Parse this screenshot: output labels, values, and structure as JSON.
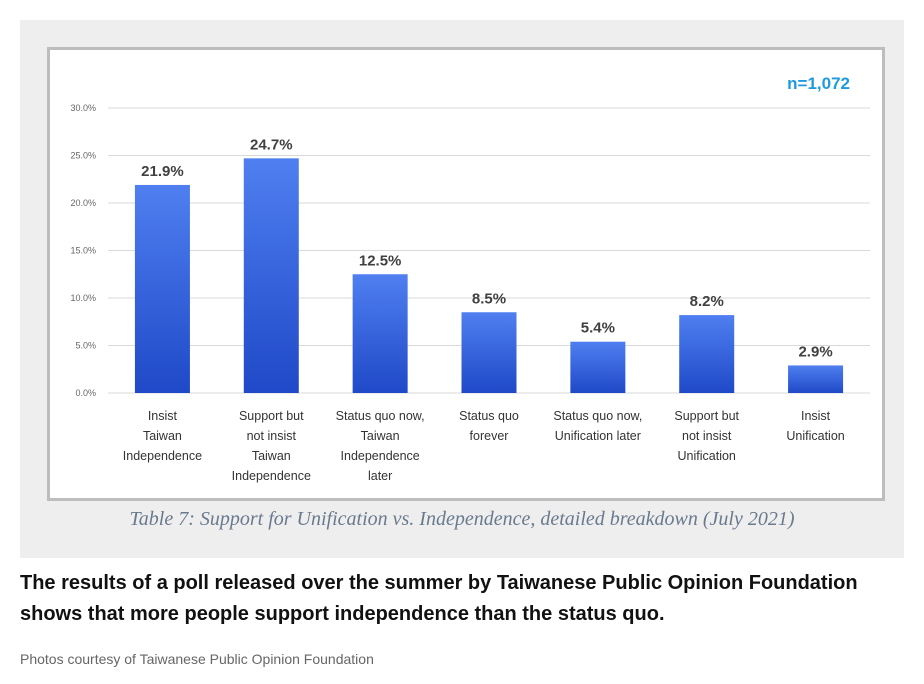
{
  "chart_data": {
    "type": "bar",
    "categories": [
      [
        "Insist",
        "Taiwan",
        "Independence"
      ],
      [
        "Support but",
        "not insist",
        "Taiwan",
        "Independence"
      ],
      [
        "Status quo now,",
        "Taiwan",
        "Independence",
        "later"
      ],
      [
        "Status quo",
        "forever"
      ],
      [
        "Status quo now,",
        "Unification later"
      ],
      [
        "Support but",
        "not insist",
        "Unification"
      ],
      [
        "Insist",
        "Unification"
      ]
    ],
    "values": [
      21.9,
      24.7,
      12.5,
      8.5,
      5.4,
      8.2,
      2.9
    ],
    "data_labels": [
      "21.9%",
      "24.7%",
      "12.5%",
      "8.5%",
      "5.4%",
      "8.2%",
      "2.9%"
    ],
    "yticks": [
      "0.0%",
      "5.0%",
      "10.0%",
      "15.0%",
      "20.0%",
      "25.0%",
      "30.0%"
    ],
    "ylim": [
      0,
      30
    ],
    "annotation": "n=1,072",
    "grid": true,
    "colors": {
      "bar_top": "#4f7ff0",
      "bar_bottom": "#1f49c8",
      "annotation": "#1e9be0",
      "grid": "#d9d9d9"
    }
  },
  "caption": "Table 7: Support for Unification vs. Independence, detailed breakdown (July 2021)",
  "headline": "The results of a poll released over the summer by Taiwanese Public Opinion Foundation shows that more people support independence than the status quo.",
  "credit": "Photos courtesy of Taiwanese Public Opinion Foundation"
}
